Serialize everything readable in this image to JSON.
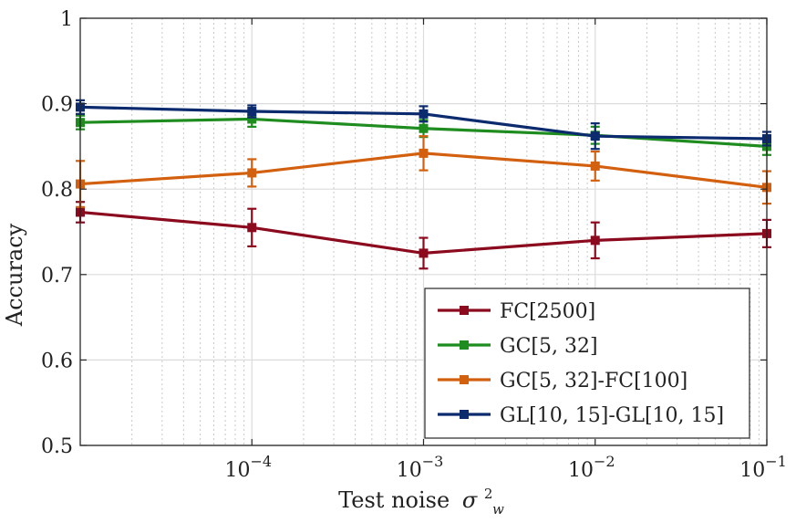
{
  "chart_data": {
    "type": "line",
    "title": "",
    "xlabel": "Test noise",
    "xlabel_symbol": "σ",
    "xlabel_sup": "2",
    "xlabel_sub": "w",
    "ylabel": "Accuracy",
    "x_scale": "log",
    "xlim": [
      1e-05,
      0.1
    ],
    "ylim": [
      0.5,
      1.0
    ],
    "grid": true,
    "legend_position": "bottom-right",
    "x": [
      1e-05,
      0.0001,
      0.001,
      0.01,
      0.1
    ],
    "x_ticks": [
      {
        "value": 0.0001,
        "base": "10",
        "exp": "−4"
      },
      {
        "value": 0.001,
        "base": "10",
        "exp": "−3"
      },
      {
        "value": 0.01,
        "base": "10",
        "exp": "−2"
      },
      {
        "value": 0.1,
        "base": "10",
        "exp": "−1"
      }
    ],
    "y_ticks": [
      {
        "value": 0.5,
        "label": "0.5"
      },
      {
        "value": 0.6,
        "label": "0.6"
      },
      {
        "value": 0.7,
        "label": "0.7"
      },
      {
        "value": 0.8,
        "label": "0.8"
      },
      {
        "value": 0.9,
        "label": "0.9"
      },
      {
        "value": 1.0,
        "label": "1"
      }
    ],
    "series": [
      {
        "name": "FC[2500]",
        "color": "#8b0a1e",
        "values": [
          0.773,
          0.755,
          0.725,
          0.74,
          0.748
        ],
        "errors": [
          0.012,
          0.022,
          0.018,
          0.021,
          0.016
        ]
      },
      {
        "name": "GC[5, 32]",
        "color": "#1f8c1f",
        "values": [
          0.878,
          0.882,
          0.871,
          0.863,
          0.85
        ],
        "errors": [
          0.008,
          0.009,
          0.01,
          0.01,
          0.01
        ]
      },
      {
        "name": "GC[5, 32]-FC[100]",
        "color": "#d2600f",
        "values": [
          0.806,
          0.819,
          0.842,
          0.827,
          0.802
        ],
        "errors": [
          0.027,
          0.016,
          0.02,
          0.017,
          0.019
        ]
      },
      {
        "name": "GL[10, 15]-GL[10, 15]",
        "color": "#0c2b6e",
        "values": [
          0.896,
          0.891,
          0.888,
          0.862,
          0.859
        ],
        "errors": [
          0.008,
          0.007,
          0.009,
          0.015,
          0.008
        ]
      }
    ]
  }
}
